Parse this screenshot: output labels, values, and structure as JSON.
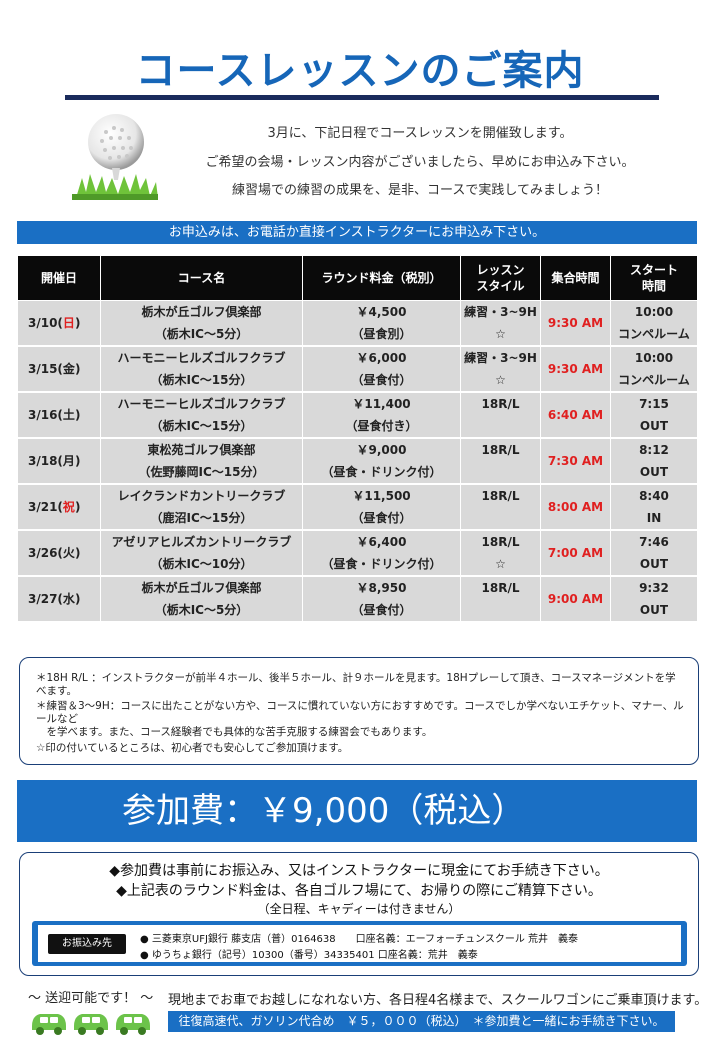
{
  "title": "コースレッスンのご案内",
  "intro": [
    "3月に、下記日程でコースレッスンを開催致します。",
    "ご希望の会場・レッスン内容がございましたら、早めにお申込み下さい。",
    "練習場での練習の成果を、是非、コースで実践してみましょう！"
  ],
  "banner": "お申込みは、お電話か直接インストラクターにお申込み下さい。",
  "table": {
    "headers": [
      "開催日",
      "コース名",
      "ラウンド料金（税別）",
      "レッスン\nスタイル",
      "集合時間",
      "スタート\n時間"
    ],
    "rows": [
      {
        "date_prefix": "3/10(",
        "day": "日",
        "day_red": true,
        "course1": "栃木が丘ゴルフ倶楽部",
        "course2": "（栃木IC～5分）",
        "fee1": "￥4,500",
        "fee2": "（昼食別）",
        "style1": "練習・3~9H",
        "style2": "☆",
        "meet": "9:30 AM",
        "start1": "10:00",
        "start2": "コンペルーム"
      },
      {
        "date_prefix": "3/15(",
        "day": "金",
        "day_red": false,
        "course1": "ハーモニーヒルズゴルフクラブ",
        "course2": "（栃木IC～15分）",
        "fee1": "￥6,000",
        "fee2": "（昼食付）",
        "style1": "練習・3~9H",
        "style2": "☆",
        "meet": "9:30 AM",
        "start1": "10:00",
        "start2": "コンペルーム"
      },
      {
        "date_prefix": "3/16(",
        "day": "土",
        "day_red": false,
        "course1": "ハーモニーヒルズゴルフクラブ",
        "course2": "（栃木IC～15分）",
        "fee1": "￥11,400",
        "fee2": "（昼食付き）",
        "style1": "18R/L",
        "style2": "",
        "meet": "6:40 AM",
        "start1": "7:15",
        "start2": "OUT"
      },
      {
        "date_prefix": "3/18(",
        "day": "月",
        "day_red": false,
        "course1": "東松苑ゴルフ倶楽部",
        "course2": "（佐野藤岡IC～15分）",
        "fee1": "￥9,000",
        "fee2": "（昼食・ドリンク付）",
        "style1": "18R/L",
        "style2": "",
        "meet": "7:30 AM",
        "start1": "8:12",
        "start2": "OUT"
      },
      {
        "date_prefix": "3/21(",
        "day": "祝",
        "day_red": true,
        "course1": "レイクランドカントリークラブ",
        "course2": "（鹿沼IC～15分）",
        "fee1": "￥11,500",
        "fee2": "（昼食付）",
        "style1": "18R/L",
        "style2": "",
        "meet": "8:00 AM",
        "start1": "8:40",
        "start2": "IN"
      },
      {
        "date_prefix": "3/26(",
        "day": "火",
        "day_red": false,
        "course1": "アゼリアヒルズカントリークラブ",
        "course2": "（栃木IC～10分）",
        "fee1": "￥6,400",
        "fee2": "（昼食・ドリンク付）",
        "style1": "18R/L",
        "style2": "☆",
        "meet": "7:00 AM",
        "start1": "7:46",
        "start2": "OUT"
      },
      {
        "date_prefix": "3/27(",
        "day": "水",
        "day_red": false,
        "course1": "栃木が丘ゴルフ倶楽部",
        "course2": "（栃木IC～5分）",
        "fee1": "￥8,950",
        "fee2": "（昼食付）",
        "style1": "18R/L",
        "style2": "",
        "meet": "9:00 AM",
        "start1": "9:32",
        "start2": "OUT"
      }
    ]
  },
  "notes": [
    "＊18H R/L ：インストラクターが前半４ホール、後半５ホール、計９ホールを見ます。18Hプレーして頂き、コースマネージメントを学べます。",
    "＊練習＆3～9H：コースに出たことがない方や、コースに慣れていない方におすすめです。コースでしか学べないエチケット、マナー、ルールなど\n　を学べます。また、コース経験者でも具体的な苦手克服する練習会でもあります。",
    "☆印の付いているところは、初心者でも安心してご参加頂けます。"
  ],
  "fee_label": "参加費：￥9,000（税込）",
  "payment": {
    "line1": "◆参加費は事前にお振込み、又はインストラクターに現金にてお手続き下さい。",
    "line2": "◆上記表のラウンド料金は、各自ゴルフ場にて、お帰りの際にご精算下さい。",
    "line3": "（全日程、キャディーは付きません）",
    "bank_label": "お振込み先",
    "bank1": "●  三菱東京UFJ銀行 藤支店（普）0164638　　口座名義：エーフォーチュンスクール 荒井　義泰",
    "bank2": "●  ゆうちょ銀行（記号）10300（番号）34335401  口座名義：荒井　義泰"
  },
  "pickup": {
    "title": "～ 送迎可能です！ ～",
    "text": "現地までお車でお越しになれない方、各日程4名様まで、スクールワゴンにご乗車頂けます。",
    "bar": "往復高速代、ガソリン代合め　￥５，０００（税込）　＊参加費と一緒にお手続き下さい。"
  },
  "colors": {
    "accent": "#1a6fc4",
    "title": "#1666b8",
    "red": "#e02020",
    "header": "#0a0a0a",
    "cell": "#d9d9d9"
  }
}
